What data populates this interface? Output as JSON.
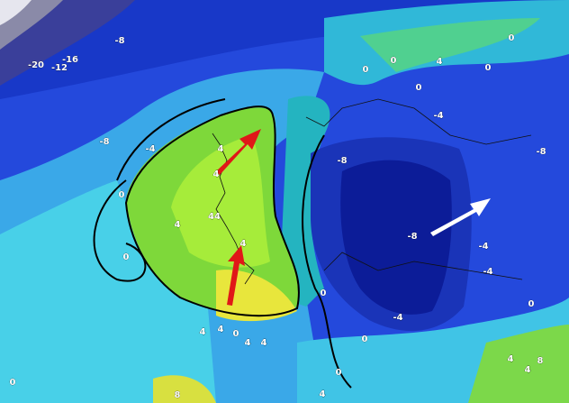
{
  "map": {
    "contour_labels": [
      "-8",
      "-20",
      "-12",
      "-16",
      "0",
      "0",
      "0",
      "4",
      "0",
      "-4",
      "0",
      "-8",
      "-4",
      "4",
      "4",
      "0",
      "4",
      "44",
      "4",
      "-8",
      "-8",
      "-8",
      "0",
      "-4",
      "-4",
      "0",
      "-4",
      "0",
      "4",
      "4",
      "0",
      "4",
      "4",
      "0",
      "0",
      "4",
      "0",
      "8",
      "4",
      "4",
      "8"
    ]
  }
}
